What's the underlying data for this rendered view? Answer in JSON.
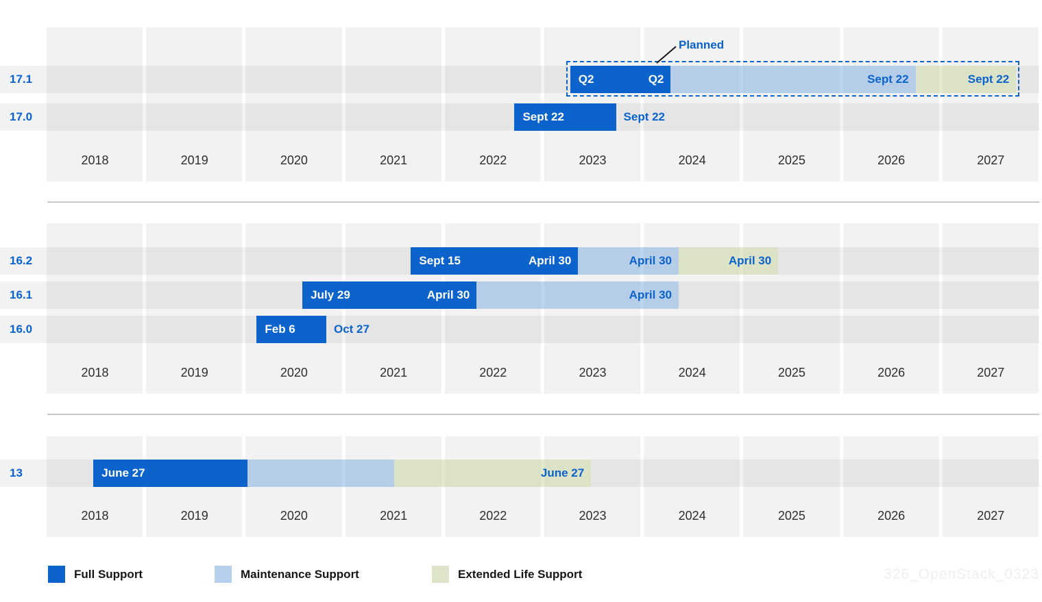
{
  "colors": {
    "full_support": "#0b63cb",
    "maintenance_support": "#b5cfec",
    "extended_life_support": "#dee4c9",
    "accent_text_blue": "#0a63cc",
    "grid_column": "#f2f2f2",
    "year_text": "#2e2e2e"
  },
  "chart_data": {
    "type": "gantt",
    "title": "",
    "x_axis": {
      "range": [
        2018,
        2027.8
      ],
      "year_ticks": [
        2018,
        2019,
        2020,
        2021,
        2022,
        2023,
        2024,
        2025,
        2026,
        2027
      ]
    },
    "planned_annotation": "Planned",
    "legend": [
      {
        "label": "Full Support",
        "phase": "full"
      },
      {
        "label": "Maintenance Support",
        "phase": "maintenance"
      },
      {
        "label": "Extended Life Support",
        "phase": "els"
      }
    ],
    "sections": [
      {
        "rows": [
          {
            "version": "17.1",
            "planned": true,
            "segments": [
              {
                "phase": "full",
                "start": 2023.26,
                "end": 2024.27,
                "label_start": "Q2",
                "label_end": "Q2"
              },
              {
                "phase": "maintenance",
                "start": 2024.27,
                "end": 2026.73,
                "label_end": "Sept 22"
              },
              {
                "phase": "els",
                "start": 2026.73,
                "end": 2027.74,
                "label_end": "Sept 22"
              }
            ]
          },
          {
            "version": "17.0",
            "segments": [
              {
                "phase": "full",
                "start": 2022.7,
                "end": 2023.72,
                "label_start": "Sept 22",
                "label_after": "Sept 22"
              }
            ]
          }
        ]
      },
      {
        "rows": [
          {
            "version": "16.2",
            "segments": [
              {
                "phase": "full",
                "start": 2021.66,
                "end": 2023.34,
                "label_start": "Sept 15",
                "label_end": "April 30"
              },
              {
                "phase": "maintenance",
                "start": 2023.34,
                "end": 2024.35,
                "label_end": "April 30"
              },
              {
                "phase": "els",
                "start": 2024.35,
                "end": 2025.35,
                "label_end": "April 30"
              }
            ]
          },
          {
            "version": "16.1",
            "segments": [
              {
                "phase": "full",
                "start": 2020.57,
                "end": 2022.32,
                "label_start": "July 29",
                "label_end": "April 30"
              },
              {
                "phase": "maintenance",
                "start": 2022.32,
                "end": 2024.35,
                "label_end": "April 30"
              }
            ]
          },
          {
            "version": "16.0",
            "segments": [
              {
                "phase": "full",
                "start": 2020.11,
                "end": 2020.81,
                "label_start": "Feb 6",
                "label_after": "Oct 27"
              }
            ]
          }
        ]
      },
      {
        "rows": [
          {
            "version": "13",
            "segments": [
              {
                "phase": "full",
                "start": 2018.47,
                "end": 2020.02,
                "label_start": "June 27"
              },
              {
                "phase": "maintenance",
                "start": 2020.02,
                "end": 2021.49
              },
              {
                "phase": "els",
                "start": 2021.49,
                "end": 2023.47,
                "label_end": "June 27"
              }
            ]
          }
        ]
      }
    ]
  },
  "watermark": "326_OpenStack_0323"
}
